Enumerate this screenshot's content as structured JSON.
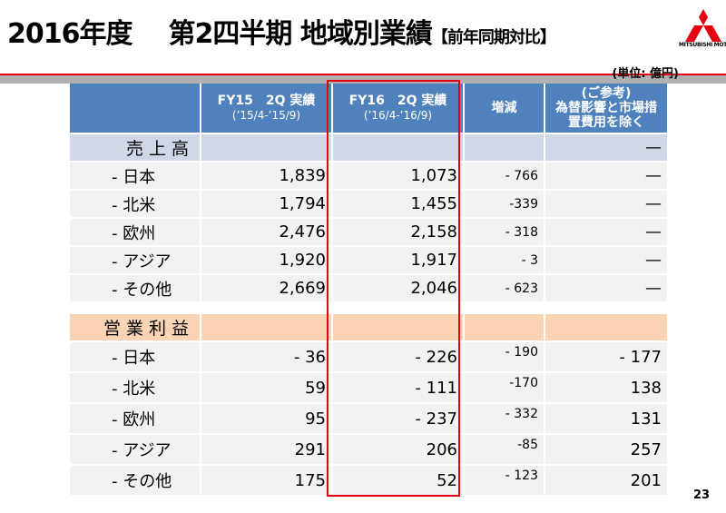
{
  "header": {
    "title_year": "2016年度",
    "title_main": "第2四半期 地域別業績",
    "title_sub": "【前年同期対比】",
    "logo_text": "MITSUBISHI MOTORS"
  },
  "unit": "(単位: 億円)",
  "columns": [
    {
      "line1": "",
      "line2": ""
    },
    {
      "line1": "FY15　2Q 実績",
      "line2": "(’15/4-’15/9)"
    },
    {
      "line1": "FY16　2Q 実績",
      "line2": "(’16/4-’16/9)"
    },
    {
      "line1": "増減",
      "line2": ""
    },
    {
      "line1": "(ご参考)",
      "line2": "為替影響と市場措置費用を除く"
    }
  ],
  "sections": [
    {
      "label": "売上高",
      "ref": "—",
      "rows": [
        {
          "label": "- 日本",
          "fy15": "1,839",
          "fy16": "1,073",
          "change": "- 766",
          "ref": "—"
        },
        {
          "label": "- 北米",
          "fy15": "1,794",
          "fy16": "1,455",
          "change": "-339",
          "ref": "—"
        },
        {
          "label": "- 欧州",
          "fy15": "2,476",
          "fy16": "2,158",
          "change": "- 318",
          "ref": "—"
        },
        {
          "label": "- アジア",
          "fy15": "1,920",
          "fy16": "1,917",
          "change": "- 3",
          "ref": "—"
        },
        {
          "label": "- その他",
          "fy15": "2,669",
          "fy16": "2,046",
          "change": "- 623",
          "ref": "—"
        }
      ]
    },
    {
      "label": "営業利益",
      "ref": "",
      "rows": [
        {
          "label": "- 日本",
          "fy15": "- 36",
          "fy16": "- 226",
          "change": "- 190",
          "ref": "- 177"
        },
        {
          "label": "- 北米",
          "fy15": "59",
          "fy16": "- 111",
          "change": "-170",
          "ref": "138"
        },
        {
          "label": "- 欧州",
          "fy15": "95",
          "fy16": "- 237",
          "change": "- 332",
          "ref": "131"
        },
        {
          "label": "- アジア",
          "fy15": "291",
          "fy16": "206",
          "change": "-85",
          "ref": "257"
        },
        {
          "label": "- その他",
          "fy15": "175",
          "fy16": "52",
          "change": "- 123",
          "ref": "201"
        }
      ]
    }
  ],
  "page_number": "23",
  "colors": {
    "header": "#4f81bd",
    "sales": "#d0d8e8",
    "op": "#fbd4b4",
    "highlight": "#e60012"
  }
}
